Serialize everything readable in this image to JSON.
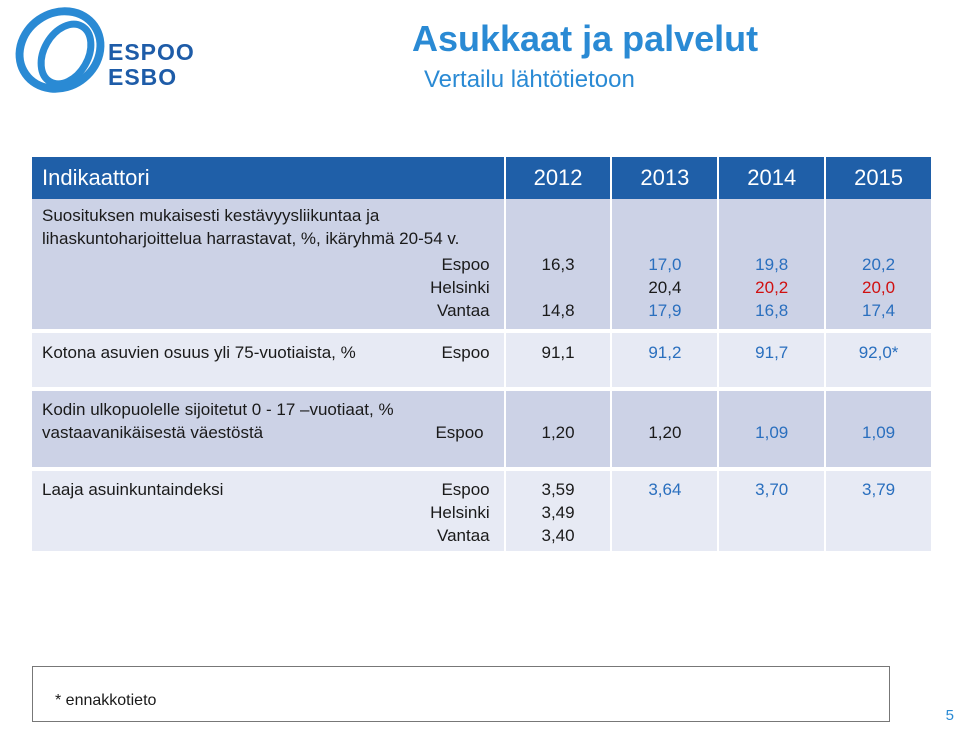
{
  "header": {
    "logo_text_1": "ESPOO",
    "logo_text_2": "ESBO",
    "title": "Asukkaat ja palvelut",
    "subtitle": "Vertailu lähtötietoon"
  },
  "table": {
    "headers": [
      "Indikaattori",
      "2012",
      "2013",
      "2014",
      "2015"
    ],
    "rows": [
      {
        "label": "Suosituksen mukaisesti kestävyysliikuntaa ja lihaskuntoharjoittelua harrastavat, %, ikäryhmä 20-54 v.",
        "cities": [
          "Espoo",
          "Helsinki",
          "Vantaa"
        ],
        "y2012": [
          "16,3",
          "",
          "14,8"
        ],
        "y2013": [
          "17,0",
          "20,4",
          "17,9"
        ],
        "y2014": [
          "19,8",
          "20,2",
          "16,8"
        ],
        "y2015": [
          "20,2",
          "20,0",
          "17,4"
        ]
      },
      {
        "label": "Kotona asuvien osuus yli 75-vuotiaista, %",
        "cities": [
          "Espoo"
        ],
        "values": [
          "91,1",
          "91,2",
          "91,7",
          "92,0*"
        ]
      },
      {
        "label": "Kodin ulkopuolelle sijoitetut 0 - 17 –vuotiaat, % vastaavanikäisestä väestöstä",
        "cities": [
          "Espoo"
        ],
        "values": [
          "1,20",
          "1,20",
          "1,09",
          "1,09"
        ]
      },
      {
        "label": "Laaja asuinkuntaindeksi",
        "cities": [
          "Espoo",
          "Helsinki",
          "Vantaa"
        ],
        "y2012": [
          "3,59",
          "3,49",
          "3,40"
        ],
        "values": [
          "3,64",
          "3,70",
          "3,79"
        ]
      }
    ]
  },
  "footnote": "* ennakkotieto",
  "page_number": "5",
  "colors": {
    "header_bg": "#1f5fa8",
    "row_bg": "#ccd2e6",
    "row_alt_bg": "#e7eaf4",
    "accent": "#2a8ad4",
    "red": "#d01010"
  }
}
